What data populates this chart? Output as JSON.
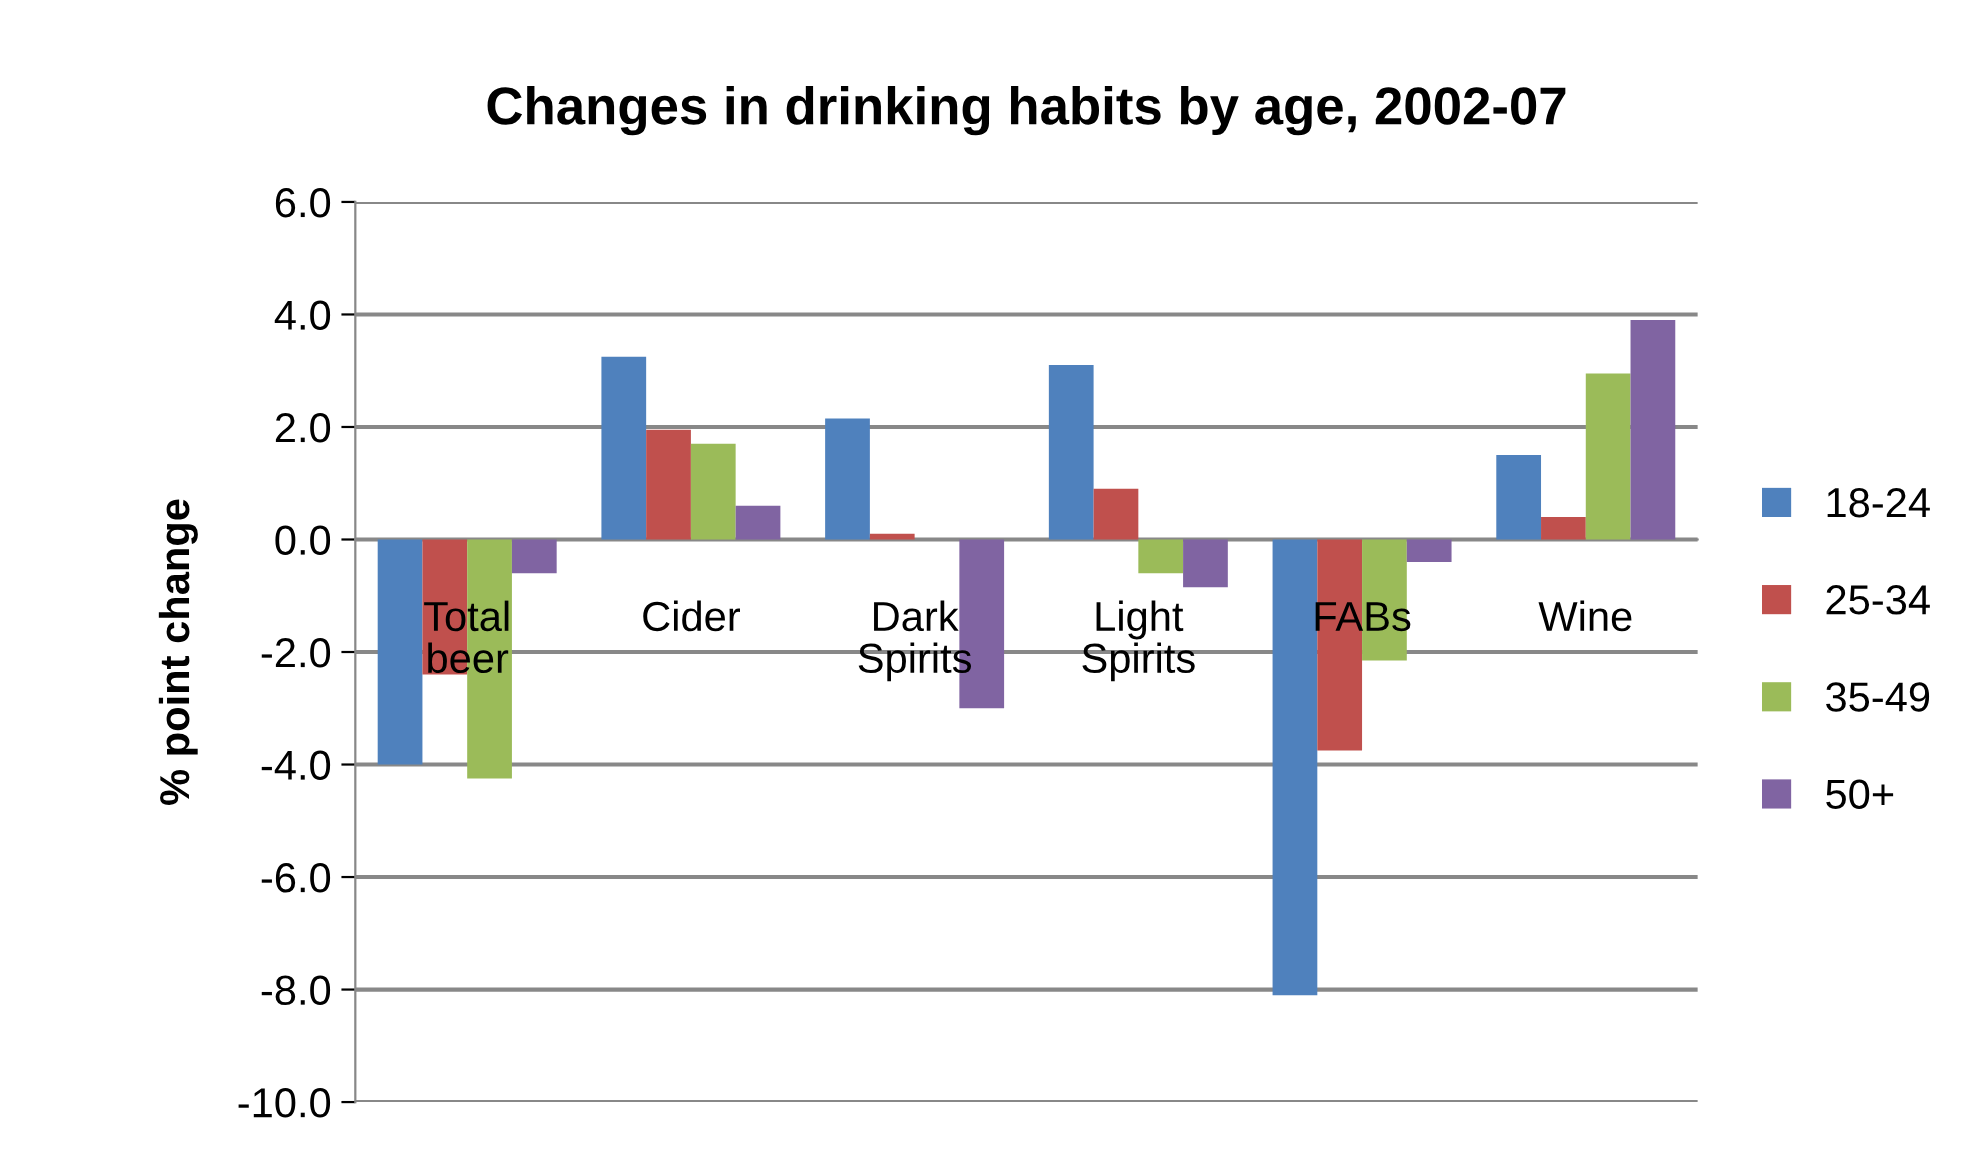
{
  "chart_data": {
    "type": "bar",
    "title": "Changes in drinking habits by age, 2002-07",
    "ylabel": "% point change",
    "categories": [
      "Total\nbeer",
      "Cider",
      "Dark\nSpirits",
      "Light\nSpirits",
      "FABs",
      "Wine"
    ],
    "series": [
      {
        "name": "18-24",
        "color": "#4f81bd",
        "values": [
          -4.0,
          3.25,
          2.15,
          3.1,
          -8.1,
          1.5
        ]
      },
      {
        "name": "25-34",
        "color": "#c0504d",
        "values": [
          -2.4,
          1.95,
          0.1,
          0.9,
          -3.75,
          0.4
        ]
      },
      {
        "name": "35-49",
        "color": "#9bbb59",
        "values": [
          -4.25,
          1.7,
          0.0,
          -0.6,
          -2.15,
          2.95
        ]
      },
      {
        "name": "50+",
        "color": "#8064a2",
        "values": [
          -0.6,
          0.6,
          -3.0,
          -0.85,
          -0.4,
          3.9
        ]
      }
    ],
    "ylim": [
      -10,
      6
    ],
    "yticks": [
      {
        "value": -10,
        "label": "-10.0"
      },
      {
        "value": -8,
        "label": "-8.0"
      },
      {
        "value": -6,
        "label": "-6.0"
      },
      {
        "value": -4,
        "label": "-4.0"
      },
      {
        "value": -2,
        "label": "-2.0"
      },
      {
        "value": 0,
        "label": "0.0"
      },
      {
        "value": 2,
        "label": "2.0"
      },
      {
        "value": 4,
        "label": "4.0"
      },
      {
        "value": 6,
        "label": "6.0"
      }
    ],
    "grid": "y",
    "legend": "right"
  }
}
